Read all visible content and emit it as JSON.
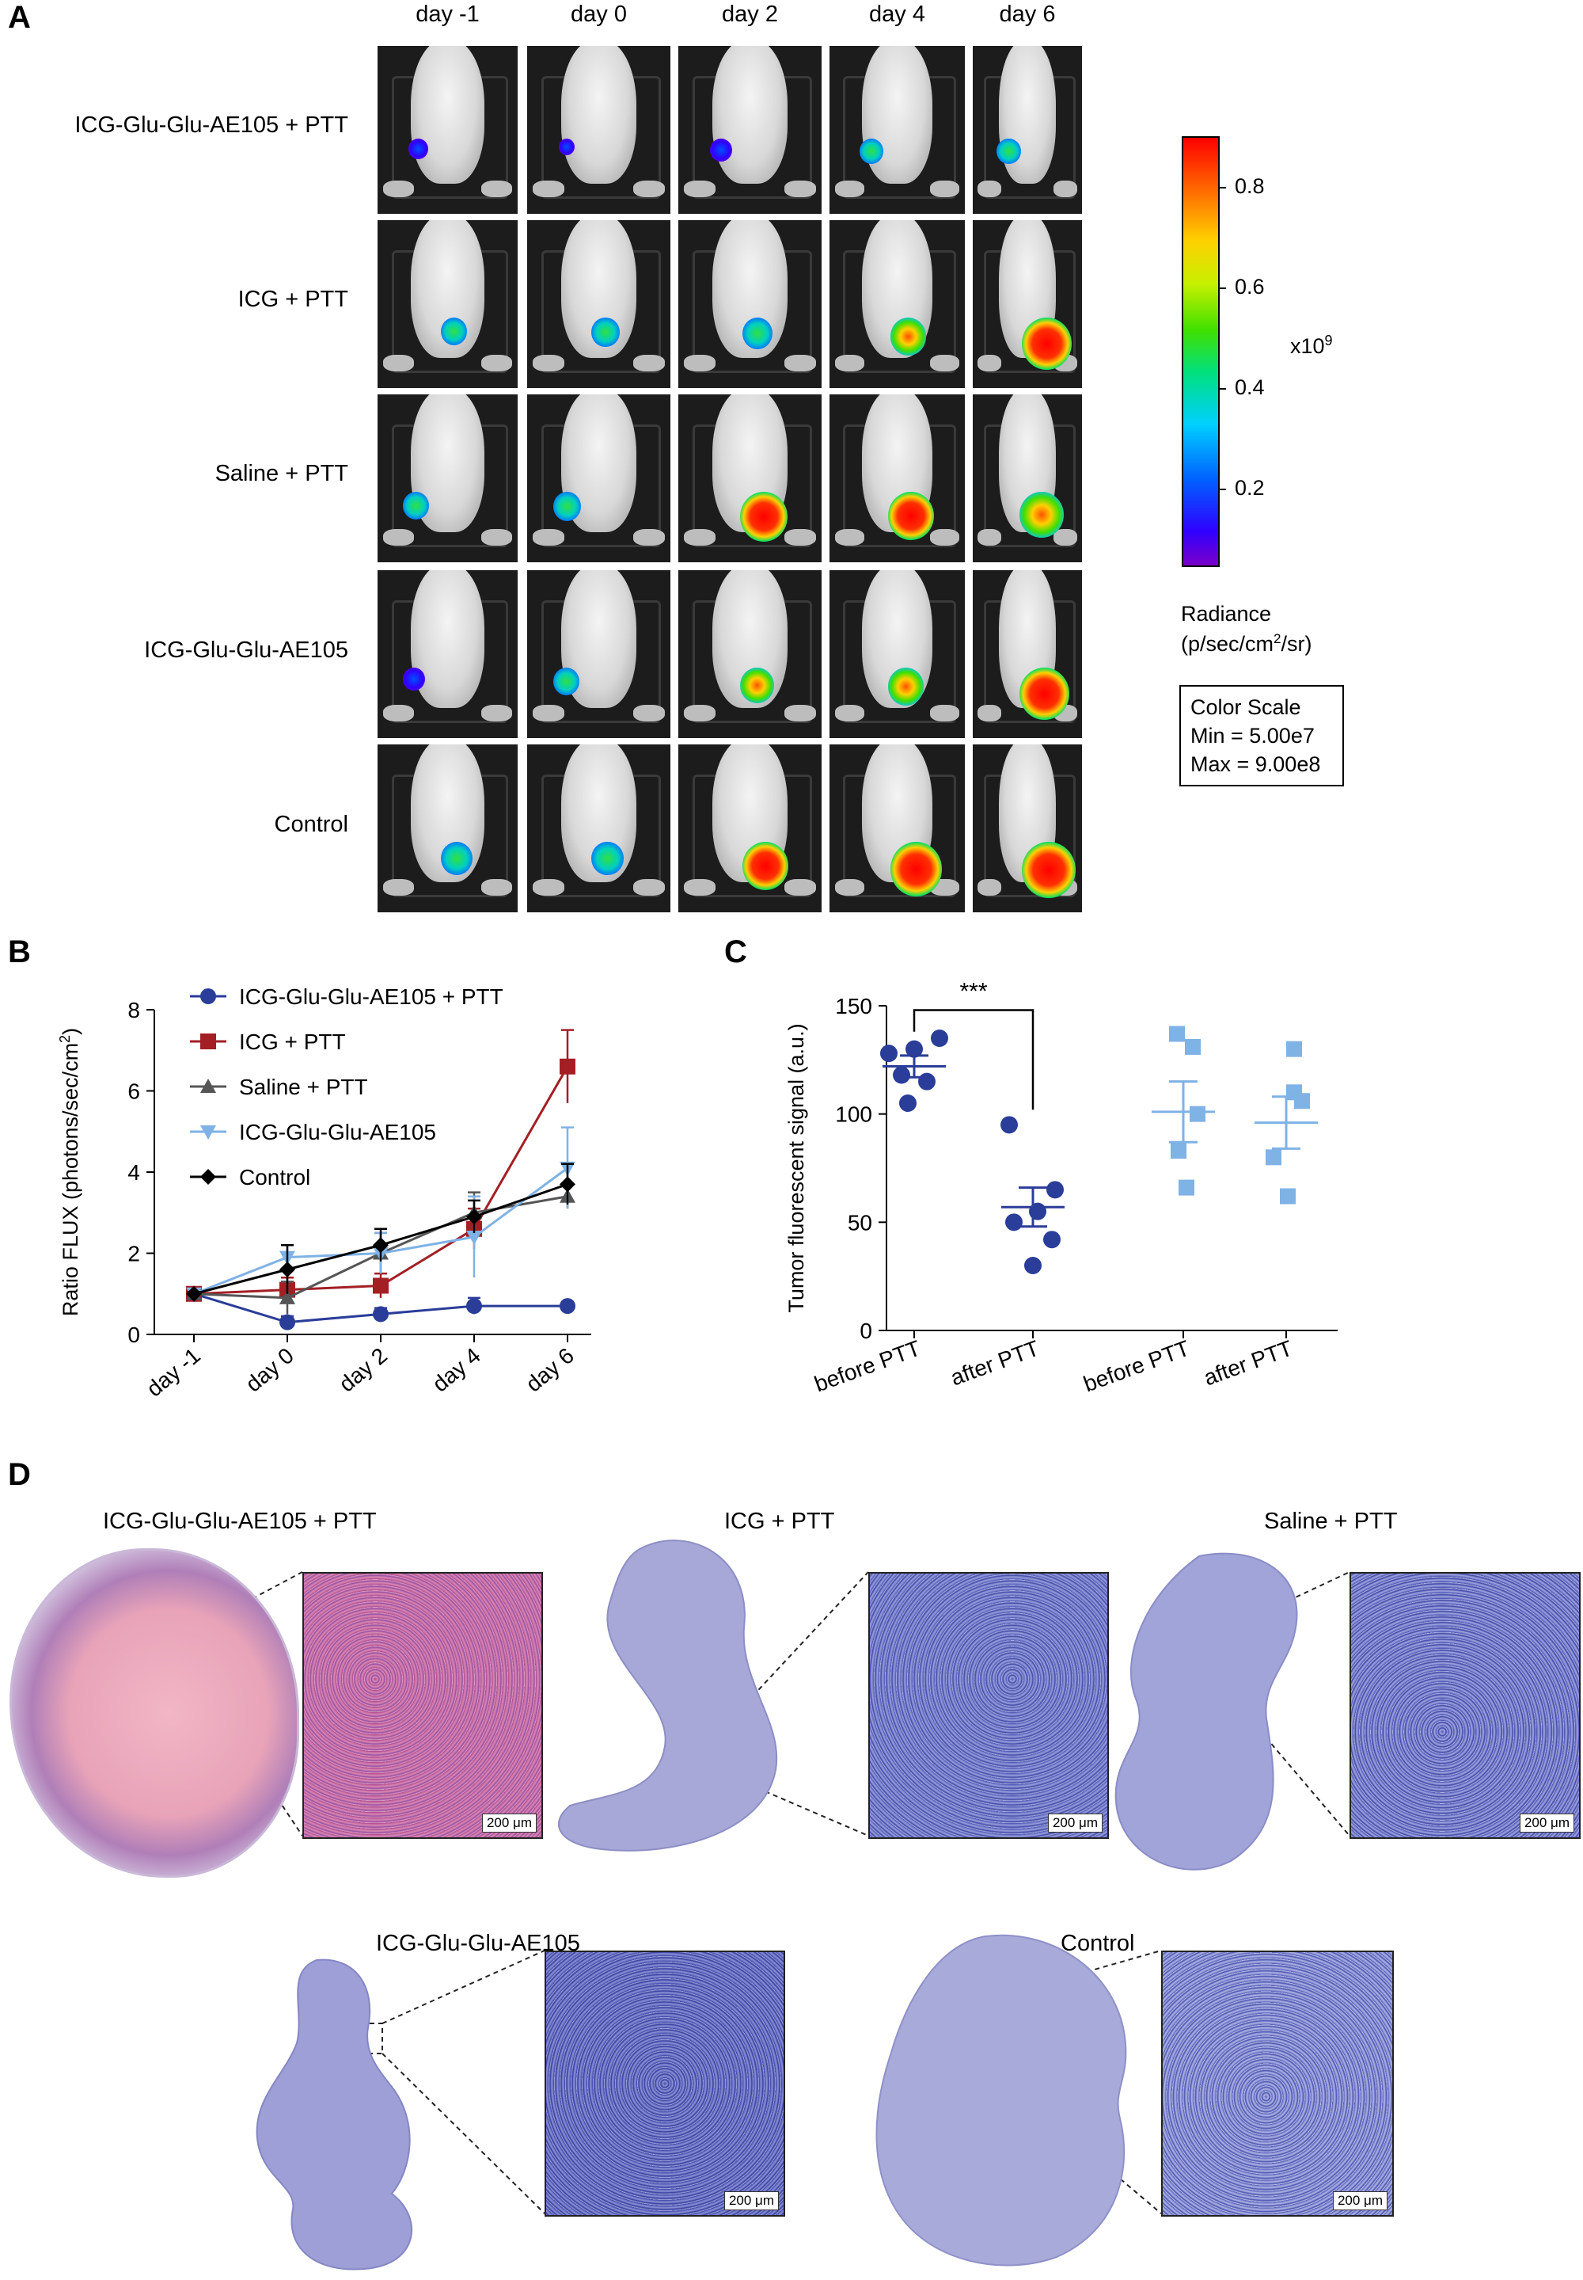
{
  "panel_a": {
    "label": "A",
    "days": [
      "day -1",
      "day 0",
      "day 2",
      "day 4",
      "day 6"
    ],
    "groups": [
      "ICG-Glu-Glu-AE105 + PTT",
      "ICG + PTT",
      "Saline + PTT",
      "ICG-Glu-Glu-AE105",
      "Control"
    ],
    "tumor_intensity": [
      [
        0.15,
        0.05,
        0.2,
        0.25,
        0.25
      ],
      [
        0.3,
        0.35,
        0.4,
        0.55,
        0.9
      ],
      [
        0.3,
        0.35,
        0.85,
        0.8,
        0.75
      ],
      [
        0.2,
        0.3,
        0.5,
        0.55,
        0.9
      ],
      [
        0.45,
        0.45,
        0.8,
        0.95,
        1.0
      ]
    ],
    "colorbar": {
      "ticks": [
        "0.2",
        "0.4",
        "0.6",
        "0.8"
      ],
      "tick_values": [
        0.2,
        0.4,
        0.6,
        0.8
      ],
      "min_value": 0.05,
      "max_value": 0.9,
      "multiplier_base": "x10",
      "multiplier_exp": "9",
      "title_line1": "Radiance",
      "title_line2_pre": "(p/sec/cm",
      "title_line2_sup": "2",
      "title_line2_post": "/sr)",
      "scale_title": "Color Scale",
      "scale_min": "Min = 5.00e7",
      "scale_max": "Max = 9.00e8"
    }
  },
  "panel_b": {
    "label": "B",
    "chart_data": {
      "type": "line",
      "categories": [
        "day -1",
        "day 0",
        "day 2",
        "day 4",
        "day 6"
      ],
      "ylabel_pre": "Ratio FLUX (photons/sec/cm",
      "ylabel_sup": "2",
      "ylabel_post": ")",
      "ylim": [
        0,
        8
      ],
      "yticks": [
        0,
        2,
        4,
        6,
        8
      ],
      "series": [
        {
          "name": "ICG-Glu-Glu-AE105 + PTT",
          "color": "#2a3d99",
          "marker": "circle",
          "values": [
            1.0,
            0.3,
            0.5,
            0.7,
            0.7
          ],
          "errors": [
            0.05,
            0.15,
            0.15,
            0.2,
            0.1
          ]
        },
        {
          "name": "ICG + PTT",
          "color": "#a31f24",
          "marker": "square",
          "values": [
            1.0,
            1.1,
            1.2,
            2.6,
            6.6
          ],
          "errors": [
            0.05,
            0.3,
            0.3,
            0.5,
            0.9
          ]
        },
        {
          "name": "Saline + PTT",
          "color": "#555555",
          "marker": "triangle",
          "values": [
            1.0,
            0.9,
            2.0,
            3.0,
            3.4
          ],
          "errors": [
            0.05,
            0.4,
            0.5,
            0.5,
            0.3
          ]
        },
        {
          "name": "ICG-Glu-Glu-AE105",
          "color": "#7fb2e5",
          "marker": "triangle-down",
          "values": [
            1.0,
            1.9,
            2.0,
            2.4,
            4.1
          ],
          "errors": [
            0.05,
            0.3,
            0.5,
            1.0,
            1.0
          ]
        },
        {
          "name": "Control",
          "color": "#000000",
          "marker": "diamond",
          "values": [
            1.0,
            1.6,
            2.2,
            2.9,
            3.7
          ],
          "errors": [
            0.05,
            0.6,
            0.4,
            0.4,
            0.5
          ]
        }
      ]
    }
  },
  "panel_c": {
    "label": "C",
    "chart_data": {
      "type": "scatter",
      "categories": [
        "before PTT",
        "after PTT",
        "before PTT",
        "after PTT"
      ],
      "ylabel": "Tumor fluorescent signal (a.u.)",
      "ylim": [
        0,
        150
      ],
      "yticks": [
        0,
        50,
        100,
        150
      ],
      "significance": "***",
      "groups": [
        {
          "color": "#2a3d99",
          "marker": "circle",
          "points": [
            128,
            130,
            135,
            118,
            115,
            105
          ],
          "mean": 122,
          "sem": 5
        },
        {
          "color": "#2a3d99",
          "marker": "circle",
          "points": [
            95,
            65,
            55,
            50,
            42,
            30
          ],
          "mean": 57,
          "sem": 9
        },
        {
          "color": "#7fb2e5",
          "marker": "square",
          "points": [
            137,
            131,
            100,
            83,
            66
          ],
          "mean": 101,
          "sem": 14
        },
        {
          "color": "#7fb2e5",
          "marker": "square",
          "points": [
            130,
            110,
            106,
            80,
            62
          ],
          "mean": 96,
          "sem": 12
        }
      ]
    }
  },
  "panel_d": {
    "label": "D",
    "titles": [
      "ICG-Glu-Glu-AE105 + PTT",
      "ICG + PTT",
      "Saline + PTT",
      "ICG-Glu-Glu-AE105",
      "Control"
    ],
    "scalebar": "200 μm"
  }
}
